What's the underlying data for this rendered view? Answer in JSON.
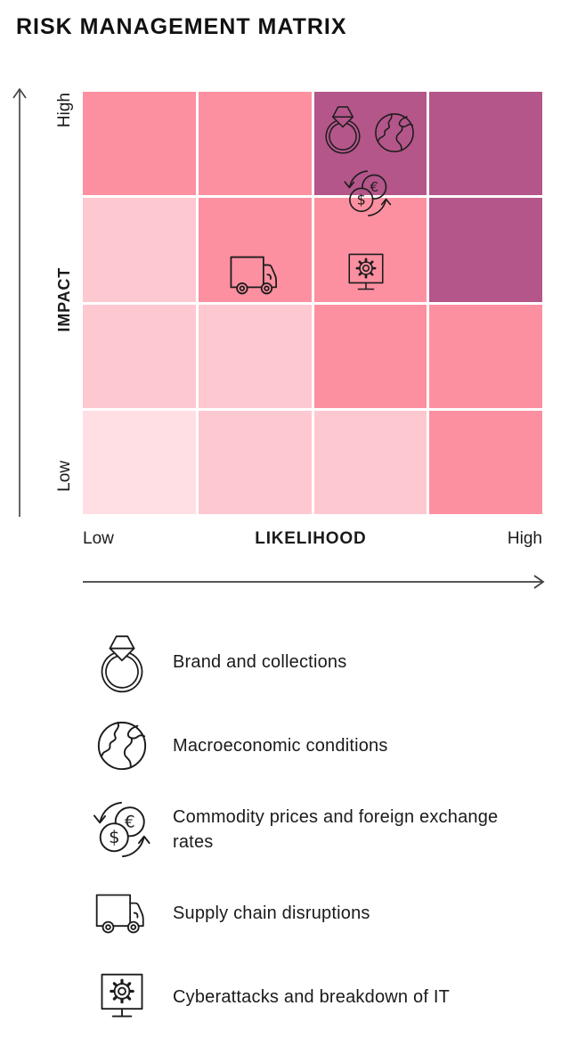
{
  "title": "RISK MANAGEMENT MATRIX",
  "axes": {
    "y": {
      "title": "IMPACT",
      "top_label": "High",
      "bottom_label": "Low"
    },
    "x": {
      "title": "LIKELIHOOD",
      "left_label": "Low",
      "right_label": "High"
    }
  },
  "legend": {
    "items": [
      {
        "icon": "ring-icon",
        "label": "Brand and collections"
      },
      {
        "icon": "globe-icon",
        "label": "Macroeconomic conditions"
      },
      {
        "icon": "currency-exchange-icon",
        "label": "Commodity prices and foreign exchange rates"
      },
      {
        "icon": "truck-icon",
        "label": "Supply chain disruptions"
      },
      {
        "icon": "monitor-gear-icon",
        "label": "Cyberattacks and breakdown of IT"
      }
    ]
  },
  "chart_data": {
    "type": "heatmap",
    "title": "RISK MANAGEMENT MATRIX",
    "xlabel": "LIKELIHOOD",
    "ylabel": "IMPACT",
    "x_axis_range_labels": [
      "Low",
      "High"
    ],
    "y_axis_range_labels": [
      "Low",
      "High"
    ],
    "grid_rows": 4,
    "grid_cols": 4,
    "grid_levels": [
      [
        3,
        3,
        4,
        4
      ],
      [
        2,
        3,
        3,
        4
      ],
      [
        2,
        2,
        3,
        3
      ],
      [
        1,
        2,
        2,
        3
      ]
    ],
    "level_colors": {
      "1": "#FFDFE4",
      "2": "#FEC8D1",
      "3": "#FC90A0",
      "4": "#B4568A"
    },
    "risk_placements": [
      {
        "risk": "Brand and collections",
        "icon": "ring-icon",
        "row": 1,
        "col": 3
      },
      {
        "risk": "Macroeconomic conditions",
        "icon": "globe-icon",
        "row": 1,
        "col": 3
      },
      {
        "risk": "Commodity prices and foreign exchange rates",
        "icon": "currency-exchange-icon",
        "row": "1-2 boundary",
        "col": 3
      },
      {
        "risk": "Supply chain disruptions",
        "icon": "truck-icon",
        "row": 2,
        "col": 2
      },
      {
        "risk": "Cyberattacks and breakdown of IT",
        "icon": "monitor-gear-icon",
        "row": 2,
        "col": 3
      }
    ]
  }
}
